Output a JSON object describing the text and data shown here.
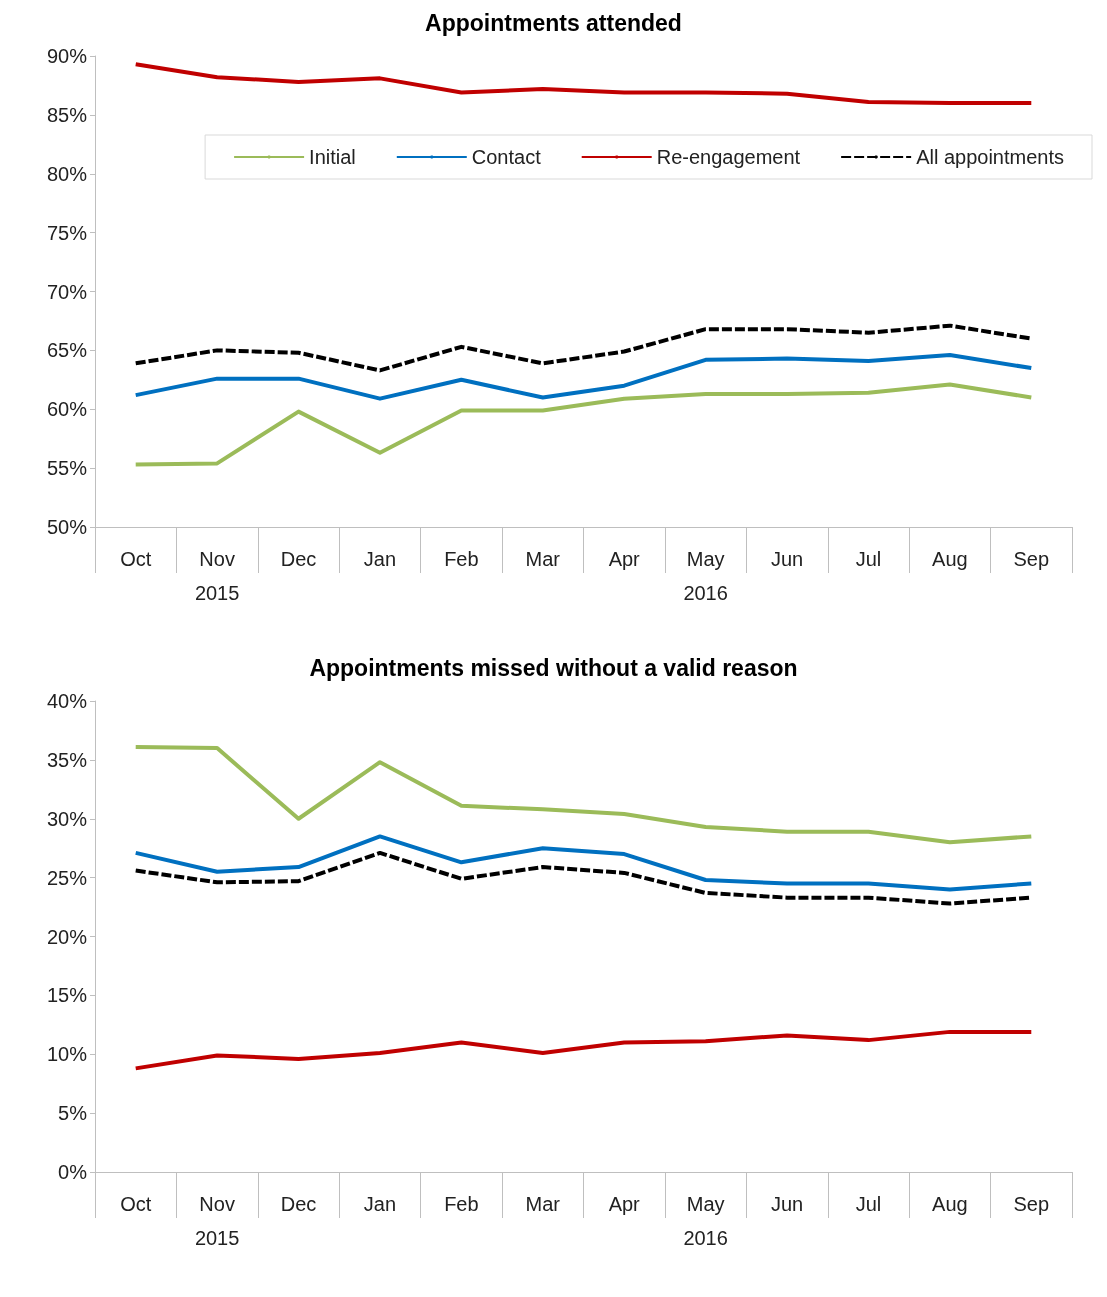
{
  "chart_data": [
    {
      "type": "line",
      "title": "Appointments attended",
      "categories": [
        "Oct",
        "Nov",
        "Dec",
        "Jan",
        "Feb",
        "Mar",
        "Apr",
        "May",
        "Jun",
        "Jul",
        "Aug",
        "Sep"
      ],
      "series": [
        {
          "name": "Initial",
          "color": "#9bbb59",
          "values": [
            55.3,
            55.4,
            59.8,
            56.3,
            59.9,
            59.9,
            60.9,
            61.3,
            61.3,
            61.4,
            62.1,
            61.0
          ]
        },
        {
          "name": "Contact",
          "color": "#0070c0",
          "values": [
            61.2,
            62.6,
            62.6,
            60.9,
            62.5,
            61.0,
            62.0,
            64.2,
            64.3,
            64.1,
            64.6,
            63.5
          ]
        },
        {
          "name": "Re-engagement",
          "color": "#c00000",
          "values": [
            89.3,
            88.2,
            87.8,
            88.1,
            86.9,
            87.2,
            86.9,
            86.9,
            86.8,
            86.1,
            86.0,
            86.0
          ]
        },
        {
          "name": "All appointments",
          "color": "#000000",
          "line_style": "dashed",
          "values": [
            63.9,
            65.0,
            64.8,
            63.3,
            65.3,
            63.9,
            64.9,
            66.8,
            66.8,
            66.5,
            67.1,
            66.0
          ]
        }
      ],
      "ylim": [
        50,
        90
      ],
      "yticks": [
        {
          "value": 50,
          "label": "50%"
        },
        {
          "value": 55,
          "label": "55%"
        },
        {
          "value": 60,
          "label": "60%"
        },
        {
          "value": 65,
          "label": "65%"
        },
        {
          "value": 70,
          "label": "70%"
        },
        {
          "value": 75,
          "label": "75%"
        },
        {
          "value": 80,
          "label": "80%"
        },
        {
          "value": 85,
          "label": "85%"
        },
        {
          "value": 90,
          "label": "90%"
        }
      ],
      "annotations": [
        "2015",
        "2016"
      ],
      "grid": false,
      "legend": "top right",
      "marker": "none",
      "line_style": "solid"
    },
    {
      "type": "line",
      "title": "Appointments missed without a valid reason",
      "categories": [
        "Oct",
        "Nov",
        "Dec",
        "Jan",
        "Feb",
        "Mar",
        "Apr",
        "May",
        "Jun",
        "Jul",
        "Aug",
        "Sep"
      ],
      "series": [
        {
          "color": "#9bbb59",
          "values": [
            36.1,
            36.0,
            30.0,
            34.8,
            31.1,
            30.8,
            30.4,
            29.3,
            28.9,
            28.9,
            28.0,
            28.5
          ]
        },
        {
          "color": "#0070c0",
          "values": [
            27.1,
            25.5,
            25.9,
            28.5,
            26.3,
            27.5,
            27.0,
            24.8,
            24.5,
            24.5,
            24.0,
            24.5
          ]
        },
        {
          "color": "#c00000",
          "values": [
            8.8,
            9.9,
            9.6,
            10.1,
            11.0,
            10.1,
            11.0,
            11.1,
            11.6,
            11.2,
            11.9,
            11.9
          ]
        },
        {
          "color": "#000000",
          "line_style": "dashed",
          "values": [
            25.6,
            24.6,
            24.7,
            27.1,
            24.9,
            25.9,
            25.4,
            23.7,
            23.3,
            23.3,
            22.8,
            23.3
          ]
        }
      ],
      "ylim": [
        0,
        40
      ],
      "yticks": [
        {
          "value": 0,
          "label": "0%"
        },
        {
          "value": 5,
          "label": "5%"
        },
        {
          "value": 10,
          "label": "10%"
        },
        {
          "value": 15,
          "label": "15%"
        },
        {
          "value": 20,
          "label": "20%"
        },
        {
          "value": 25,
          "label": "25%"
        },
        {
          "value": 30,
          "label": "30%"
        },
        {
          "value": 35,
          "label": "35%"
        },
        {
          "value": 40,
          "label": "40%"
        }
      ],
      "annotations": [
        "2015",
        "2016"
      ],
      "grid": false,
      "legend": false,
      "marker": "none",
      "line_style": "solid"
    }
  ]
}
